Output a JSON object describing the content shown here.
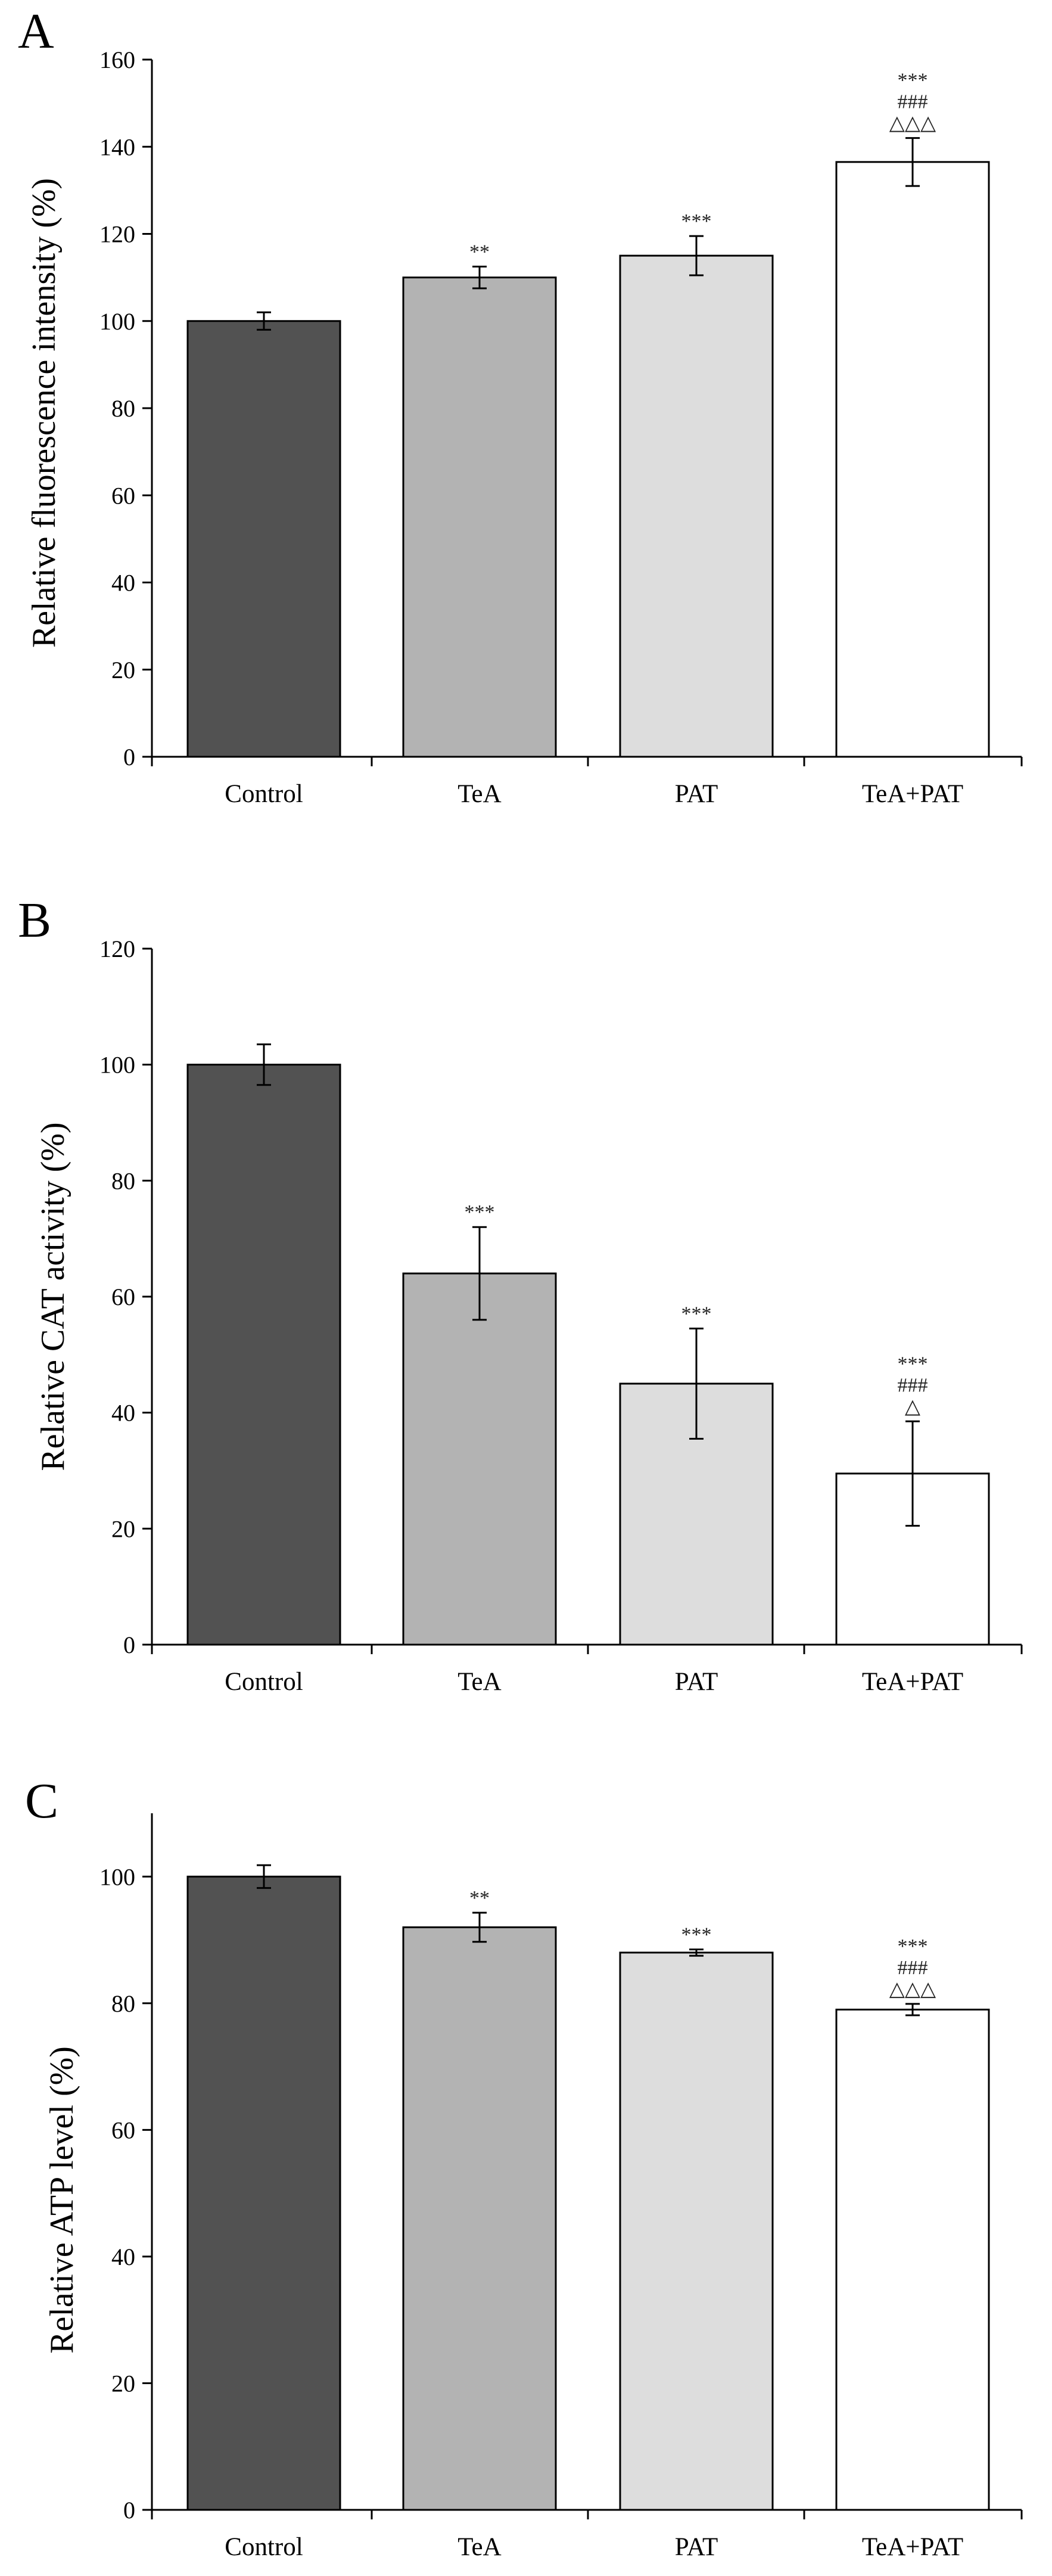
{
  "chart_data": [
    {
      "type": "bar",
      "panel": "A",
      "categories": [
        "Control",
        "TeA",
        "PAT",
        "TeA+PAT"
      ],
      "values": [
        100,
        110,
        115,
        136.5
      ],
      "errors": [
        2,
        2.5,
        4.5,
        5.5
      ],
      "significance": [
        [],
        [
          "**"
        ],
        [
          "***"
        ],
        [
          "***",
          "###",
          "△△△"
        ]
      ],
      "colors": [
        "#525252",
        "#b3b3b3",
        "#dddddd",
        "#ffffff"
      ],
      "xlabel": "",
      "ylabel": "Relative fluorescence intensity (%)",
      "ylim": [
        0,
        160
      ],
      "yticks": [
        0,
        20,
        40,
        60,
        80,
        100,
        120,
        140,
        160
      ],
      "grid": false
    },
    {
      "type": "bar",
      "panel": "B",
      "categories": [
        "Control",
        "TeA",
        "PAT",
        "TeA+PAT"
      ],
      "values": [
        100,
        64,
        45,
        29.5
      ],
      "errors": [
        3.5,
        8,
        9.5,
        9
      ],
      "significance": [
        [],
        [
          "***"
        ],
        [
          "***"
        ],
        [
          "***",
          "###",
          "△"
        ]
      ],
      "colors": [
        "#525252",
        "#b3b3b3",
        "#dddddd",
        "#ffffff"
      ],
      "xlabel": "",
      "ylabel": "Relative CAT activity (%)",
      "ylim": [
        0,
        120
      ],
      "yticks": [
        0,
        20,
        40,
        60,
        80,
        100,
        120
      ],
      "grid": false
    },
    {
      "type": "bar",
      "panel": "C",
      "categories": [
        "Control",
        "TeA",
        "PAT",
        "TeA+PAT"
      ],
      "values": [
        100,
        92,
        88,
        79
      ],
      "errors": [
        1.8,
        2.3,
        0.5,
        0.9
      ],
      "significance": [
        [],
        [
          "**"
        ],
        [
          "***"
        ],
        [
          "***",
          "###",
          "△△△"
        ]
      ],
      "colors": [
        "#525252",
        "#b3b3b3",
        "#dddddd",
        "#ffffff"
      ],
      "xlabel": "",
      "ylabel": "Relative ATP level (%)",
      "ylim": [
        0,
        110
      ],
      "yticks": [
        0,
        20,
        40,
        60,
        80,
        100
      ],
      "grid": false
    }
  ]
}
